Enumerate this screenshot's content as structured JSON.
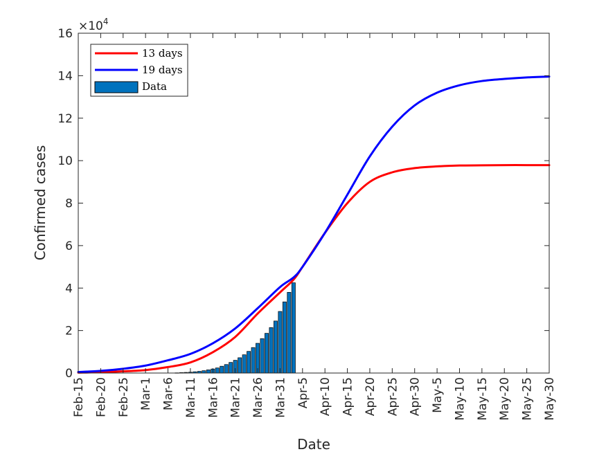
{
  "chart_data": {
    "type": "line",
    "xlabel": "Date",
    "ylabel": "Confirmed cases",
    "y_multiplier": {
      "prefix": "×10",
      "exponent": "4"
    },
    "x_tick_labels": [
      "Feb-15",
      "Feb-20",
      "Feb-25",
      "Mar-1",
      "Mar-6",
      "Mar-11",
      "Mar-16",
      "Mar-21",
      "Mar-26",
      "Mar-31",
      "Apr-5",
      "Apr-10",
      "Apr-15",
      "Apr-20",
      "Apr-25",
      "Apr-30",
      "May-5",
      "May-10",
      "May-15",
      "May-20",
      "May-25",
      "May-30"
    ],
    "y_tick_labels": [
      "0",
      "2",
      "4",
      "6",
      "8",
      "10",
      "12",
      "14",
      "16"
    ],
    "xlim": [
      "Feb-15",
      "May-30"
    ],
    "ylim": [
      0,
      16
    ],
    "y_unit": "x10^4 confirmed cases",
    "legend": {
      "position": "top-left",
      "entries": [
        "13 days",
        "19 days",
        "Data"
      ]
    },
    "colors": {
      "series_13": "#ff0000",
      "series_19": "#0000ff",
      "bars": "#0072bd",
      "bar_edge": "#000000",
      "axes": "#262626"
    },
    "series": [
      {
        "name": "13 days",
        "x": [
          "Feb-15",
          "Feb-20",
          "Feb-25",
          "Mar-1",
          "Mar-6",
          "Mar-11",
          "Mar-16",
          "Mar-21",
          "Mar-26",
          "Mar-31",
          "Apr-3",
          "Apr-5",
          "Apr-10",
          "Apr-15",
          "Apr-20",
          "Apr-25",
          "Apr-30",
          "May-5",
          "May-10",
          "May-15",
          "May-20",
          "May-25",
          "May-30"
        ],
        "y": [
          0.02,
          0.04,
          0.08,
          0.14,
          0.28,
          0.5,
          0.98,
          1.7,
          2.8,
          3.8,
          4.4,
          5.0,
          6.6,
          8.0,
          9.0,
          9.45,
          9.65,
          9.73,
          9.77,
          9.78,
          9.79,
          9.79,
          9.79
        ]
      },
      {
        "name": "19 days",
        "x": [
          "Feb-15",
          "Feb-20",
          "Feb-25",
          "Mar-1",
          "Mar-6",
          "Mar-11",
          "Mar-16",
          "Mar-21",
          "Mar-26",
          "Mar-31",
          "Apr-3",
          "Apr-5",
          "Apr-10",
          "Apr-15",
          "Apr-20",
          "Apr-25",
          "Apr-30",
          "May-5",
          "May-10",
          "May-15",
          "May-20",
          "May-25",
          "May-30"
        ],
        "y": [
          0.05,
          0.1,
          0.2,
          0.35,
          0.6,
          0.9,
          1.4,
          2.1,
          3.05,
          4.05,
          4.5,
          5.0,
          6.6,
          8.4,
          10.2,
          11.6,
          12.6,
          13.2,
          13.55,
          13.75,
          13.85,
          13.92,
          13.96
        ]
      },
      {
        "name": "Data",
        "type": "bar",
        "x": [
          "Mar-8",
          "Mar-9",
          "Mar-10",
          "Mar-11",
          "Mar-12",
          "Mar-13",
          "Mar-14",
          "Mar-15",
          "Mar-16",
          "Mar-17",
          "Mar-18",
          "Mar-19",
          "Mar-20",
          "Mar-21",
          "Mar-22",
          "Mar-23",
          "Mar-24",
          "Mar-25",
          "Mar-26",
          "Mar-27",
          "Mar-28",
          "Mar-29",
          "Mar-30",
          "Mar-31",
          "Apr-1",
          "Apr-2",
          "Apr-3"
        ],
        "y": [
          0.01,
          0.02,
          0.03,
          0.04,
          0.06,
          0.08,
          0.11,
          0.15,
          0.19,
          0.24,
          0.32,
          0.4,
          0.5,
          0.6,
          0.72,
          0.86,
          1.02,
          1.2,
          1.4,
          1.62,
          1.87,
          2.14,
          2.45,
          2.9,
          3.35,
          3.8,
          4.25
        ]
      }
    ]
  }
}
